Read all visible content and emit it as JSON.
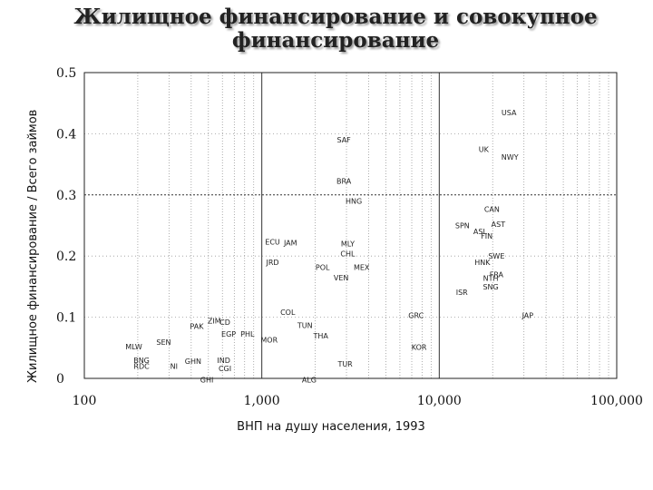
{
  "chart_data": {
    "type": "scatter",
    "title": [
      "Жилищное финансирование и совокупное",
      "финансирование"
    ],
    "xlabel": "ВНП на душу населения, 1993",
    "ylabel": "Жилищное финансирование / Всего займов",
    "xscale": "log",
    "xlim": [
      100,
      100000
    ],
    "ylim": [
      0,
      0.5
    ],
    "xticks": [
      "100",
      "1,000",
      "10,000",
      "100,000"
    ],
    "yticks": [
      "0",
      "0.1",
      "0.2",
      "0.3",
      "0.4",
      "0.5"
    ],
    "grid": "dotted log minor lines, solid decades",
    "points": [
      {
        "label": "USA",
        "x": 24700,
        "y": 0.435
      },
      {
        "label": "SAF",
        "x": 2900,
        "y": 0.39
      },
      {
        "label": "UK",
        "x": 17800,
        "y": 0.375
      },
      {
        "label": "NWY",
        "x": 25000,
        "y": 0.362
      },
      {
        "label": "BRA",
        "x": 2900,
        "y": 0.323
      },
      {
        "label": "HNG",
        "x": 3300,
        "y": 0.29
      },
      {
        "label": "CAN",
        "x": 19800,
        "y": 0.277
      },
      {
        "label": "SPN",
        "x": 13500,
        "y": 0.25
      },
      {
        "label": "AST",
        "x": 21500,
        "y": 0.252
      },
      {
        "label": "ASL",
        "x": 17000,
        "y": 0.24
      },
      {
        "label": "FIN",
        "x": 18500,
        "y": 0.233
      },
      {
        "label": "ECU",
        "x": 1150,
        "y": 0.223
      },
      {
        "label": "JAM",
        "x": 1450,
        "y": 0.222
      },
      {
        "label": "MLY",
        "x": 3050,
        "y": 0.22
      },
      {
        "label": "CHL",
        "x": 3050,
        "y": 0.204
      },
      {
        "label": "SWE",
        "x": 21000,
        "y": 0.2
      },
      {
        "label": "JRD",
        "x": 1150,
        "y": 0.19
      },
      {
        "label": "HNK",
        "x": 17500,
        "y": 0.19
      },
      {
        "label": "POL",
        "x": 2200,
        "y": 0.182
      },
      {
        "label": "MEX",
        "x": 3650,
        "y": 0.182
      },
      {
        "label": "FRA",
        "x": 21000,
        "y": 0.17
      },
      {
        "label": "NTH",
        "x": 19500,
        "y": 0.164
      },
      {
        "label": "VEN",
        "x": 2800,
        "y": 0.165
      },
      {
        "label": "SNG",
        "x": 19500,
        "y": 0.15
      },
      {
        "label": "ISR",
        "x": 13400,
        "y": 0.141
      },
      {
        "label": "COL",
        "x": 1400,
        "y": 0.108
      },
      {
        "label": "GRC",
        "x": 7400,
        "y": 0.103
      },
      {
        "label": "JAP",
        "x": 31500,
        "y": 0.103
      },
      {
        "label": "PAK",
        "x": 430,
        "y": 0.085
      },
      {
        "label": "ZIM",
        "x": 540,
        "y": 0.094
      },
      {
        "label": "CD",
        "x": 620,
        "y": 0.092
      },
      {
        "label": "TUN",
        "x": 1750,
        "y": 0.087
      },
      {
        "label": "EGP",
        "x": 650,
        "y": 0.073
      },
      {
        "label": "PHL",
        "x": 830,
        "y": 0.073
      },
      {
        "label": "THA",
        "x": 2150,
        "y": 0.07
      },
      {
        "label": "MOR",
        "x": 1100,
        "y": 0.063
      },
      {
        "label": "SEN",
        "x": 280,
        "y": 0.059
      },
      {
        "label": "MLW",
        "x": 190,
        "y": 0.052
      },
      {
        "label": "KOR",
        "x": 7700,
        "y": 0.051
      },
      {
        "label": "BNG",
        "x": 210,
        "y": 0.03
      },
      {
        "label": "GHN",
        "x": 410,
        "y": 0.028
      },
      {
        "label": "IND",
        "x": 610,
        "y": 0.03
      },
      {
        "label": "TUR",
        "x": 2950,
        "y": 0.024
      },
      {
        "label": "RDC",
        "x": 210,
        "y": 0.02
      },
      {
        "label": "NI",
        "x": 320,
        "y": 0.02
      },
      {
        "label": "CGI",
        "x": 620,
        "y": 0.016
      },
      {
        "label": "GHI",
        "x": 490,
        "y": -0.002
      },
      {
        "label": "ALG",
        "x": 1850,
        "y": -0.002
      }
    ]
  }
}
